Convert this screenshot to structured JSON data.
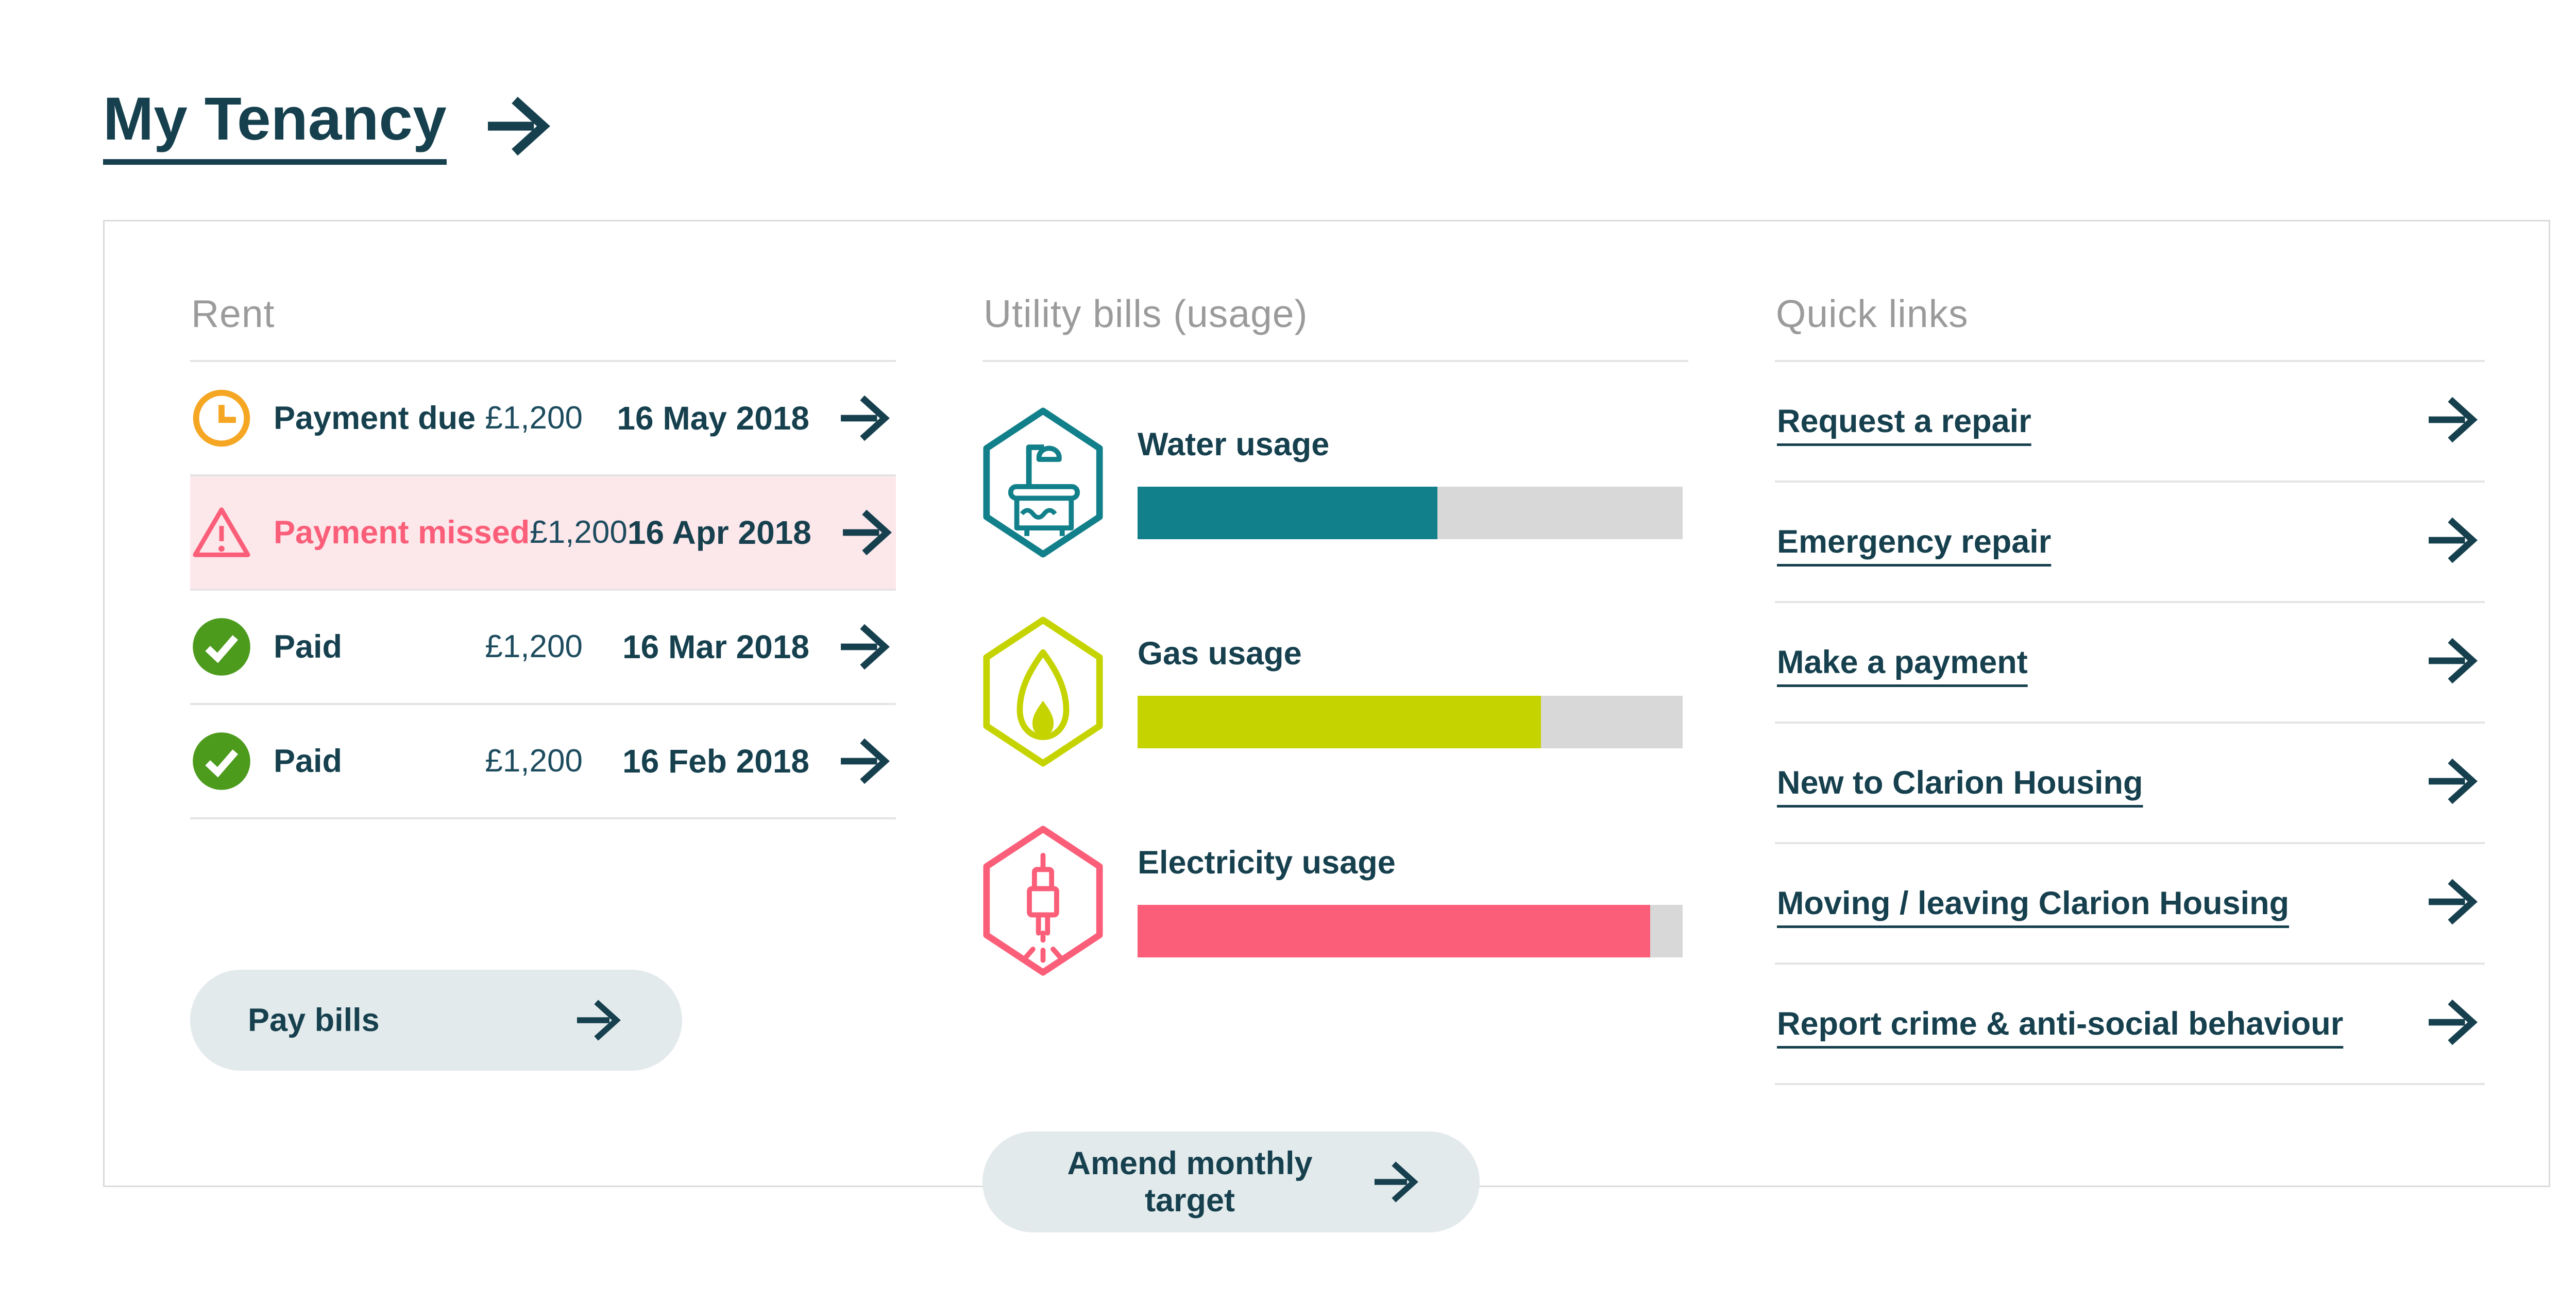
{
  "title": {
    "label": "My Tenancy"
  },
  "rent": {
    "heading": "Rent",
    "rows": [
      {
        "status": "Payment due",
        "amount": "£1,200",
        "date": "16 May 2018",
        "state": "due",
        "icon": "clock-icon"
      },
      {
        "status": "Payment missed",
        "amount": "£1,200",
        "date": "16 Apr 2018",
        "state": "missed",
        "icon": "warning-triangle-icon"
      },
      {
        "status": "Paid",
        "amount": "£1,200",
        "date": "16 Mar 2018",
        "state": "paid",
        "icon": "check-circle-icon"
      },
      {
        "status": "Paid",
        "amount": "£1,200",
        "date": "16 Feb 2018",
        "state": "paid",
        "icon": "check-circle-icon"
      }
    ],
    "button_label": "Pay bills"
  },
  "utilities": {
    "heading": "Utility bills (usage)",
    "button_label": "Amend monthly target",
    "chart_data": {
      "type": "bar",
      "categories": [
        "Water usage",
        "Gas usage",
        "Electricity usage"
      ],
      "values": [
        55,
        74,
        94
      ],
      "value_unit": "percent of bar filled (estimated from pixels, no numeric labels shown)",
      "colors": [
        "#12808A",
        "#C5D400",
        "#FB5E78"
      ],
      "track_color": "#D8D8D8",
      "xlim": [
        0,
        100
      ],
      "icons": [
        "bathtub-shower-hexagon-icon",
        "flame-hexagon-icon",
        "electric-plug-hexagon-icon"
      ]
    }
  },
  "quick_links": {
    "heading": "Quick links",
    "links": [
      {
        "label": "Request a repair"
      },
      {
        "label": "Emergency repair"
      },
      {
        "label": "Make a payment"
      },
      {
        "label": "New to Clarion Housing"
      },
      {
        "label": "Moving / leaving Clarion Housing"
      },
      {
        "label": "Report crime & anti-social behaviour"
      }
    ]
  },
  "colors": {
    "accent_dark_teal": "#16404E",
    "heading_gray": "#9B9B9B",
    "missed_pink": "#FB5E78",
    "missed_row_bg": "#FCE7EB",
    "due_orange": "#F5A623",
    "paid_green": "#4D9B1D",
    "water_teal": "#12808A",
    "gas_yellow_green": "#C5D400",
    "electricity_pink": "#FB5E78",
    "bar_track_gray": "#D8D8D8",
    "button_bg": "#E3EAEC",
    "card_border": "#DBDBDB",
    "divider": "#E4E4E4"
  }
}
